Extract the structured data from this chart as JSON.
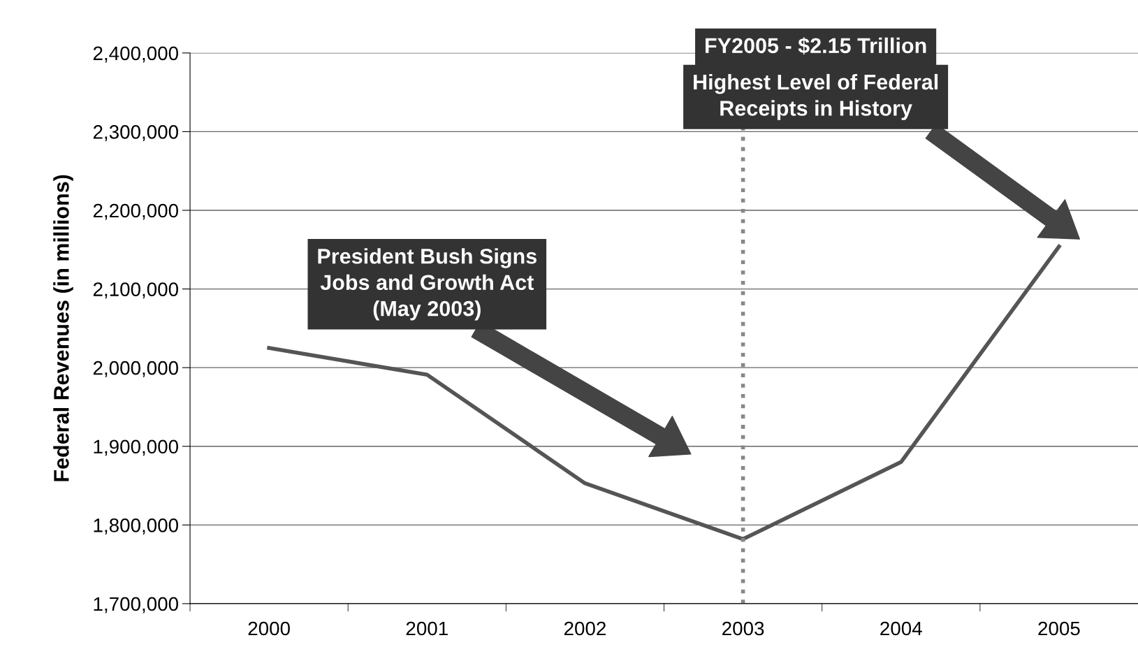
{
  "chart_data": {
    "type": "line",
    "ylabel": "Federal Revenues (in millions)",
    "categories": [
      "2000",
      "2001",
      "2002",
      "2003",
      "2004",
      "2005"
    ],
    "series": [
      {
        "color": "#555555",
        "values": [
          2025000,
          1991000,
          1853000,
          1782000,
          1880000,
          2154000
        ]
      }
    ],
    "ylim": [
      1700000,
      2400000
    ],
    "yticks": [
      {
        "value": 1700000,
        "label": "1,700,000"
      },
      {
        "value": 1800000,
        "label": "1,800,000"
      },
      {
        "value": 1900000,
        "label": "1,900,000"
      },
      {
        "value": 2000000,
        "label": "2,000,000"
      },
      {
        "value": 2100000,
        "label": "2,100,000"
      },
      {
        "value": 2200000,
        "label": "2,200,000"
      },
      {
        "value": 2300000,
        "label": "2,300,000"
      },
      {
        "value": 2400000,
        "label": "2,400,000"
      }
    ],
    "grid": "y",
    "legend": false,
    "marker": "none",
    "line_style": "solid",
    "ref_lines": [
      {
        "axis": "x",
        "value": "2003",
        "color": "#888888",
        "line_style": "dotted"
      }
    ],
    "annotations": [
      "President Bush Signs\nJobs and Growth Act\n(May 2003)",
      "FY2005 - $2.15 Trillion",
      "Highest Level of Federal\nReceipts in History"
    ]
  }
}
